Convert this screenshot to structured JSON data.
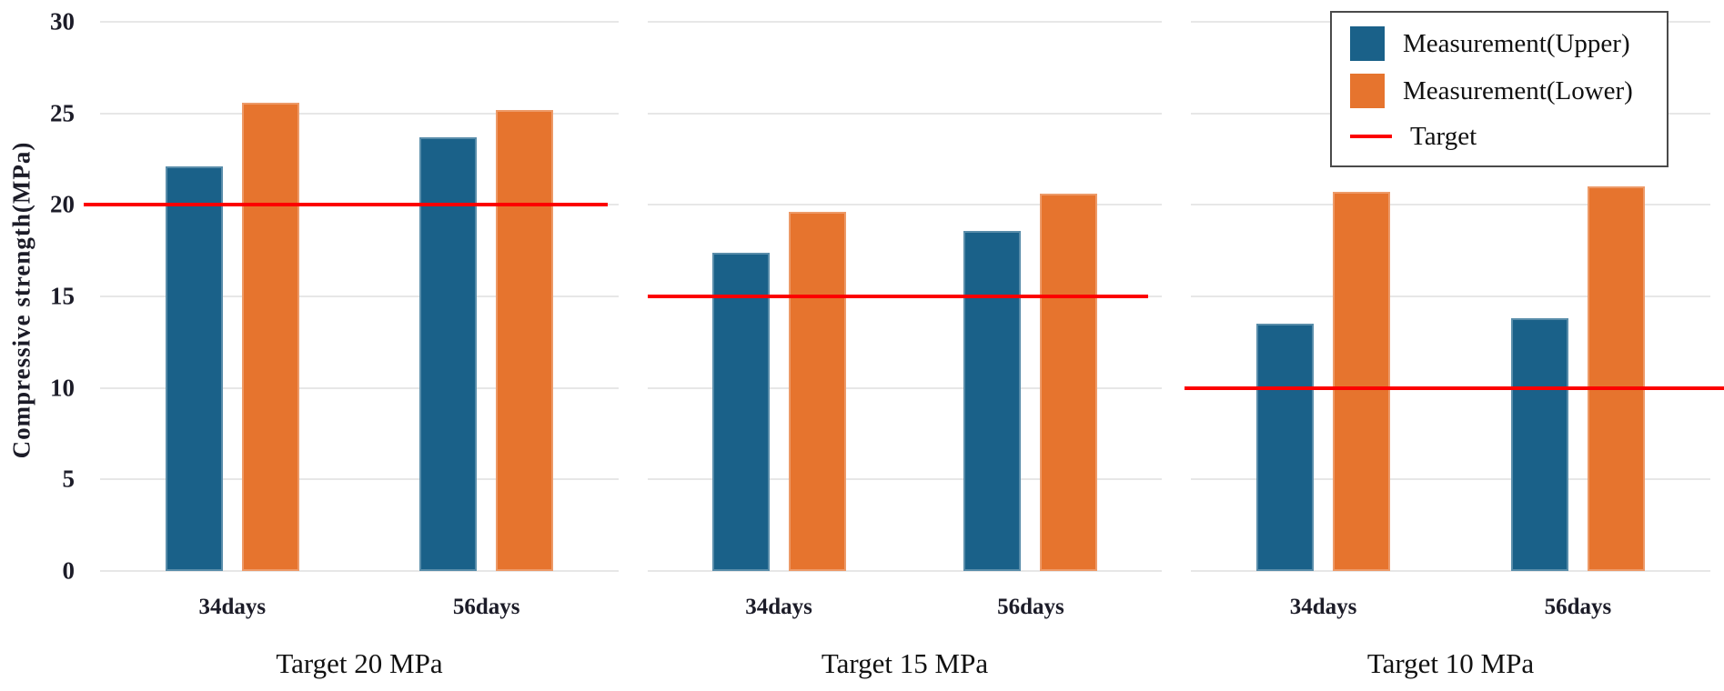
{
  "chart_data": {
    "type": "bar",
    "ylabel": "Compressive strength(MPa)",
    "ylim": [
      0,
      30
    ],
    "y_ticks": [
      "0",
      "5",
      "10",
      "15",
      "20",
      "25",
      "30"
    ],
    "grid": "horizontal",
    "categories": [
      "34days",
      "56days"
    ],
    "legend_position": "upper right",
    "legend_items": [
      {
        "label": "Measurement(Upper)",
        "swatch": "square",
        "color_key": "upper"
      },
      {
        "label": "Measurement(Lower)",
        "swatch": "square",
        "color_key": "lower"
      },
      {
        "label": "Target",
        "swatch": "line",
        "color_key": "target"
      }
    ],
    "colors": {
      "upper": "#1a6189",
      "lower": "#e6742e",
      "target": "#fc0000"
    },
    "panels": [
      {
        "title": "Target 20 MPa",
        "target": 20,
        "series": [
          {
            "name": "Measurement(Upper)",
            "values": [
              22.1,
              23.7
            ]
          },
          {
            "name": "Measurement(Lower)",
            "values": [
              25.6,
              25.2
            ]
          }
        ]
      },
      {
        "title": "Target 15 MPa",
        "target": 15,
        "series": [
          {
            "name": "Measurement(Upper)",
            "values": [
              17.4,
              18.6
            ]
          },
          {
            "name": "Measurement(Lower)",
            "values": [
              19.6,
              20.6
            ]
          }
        ]
      },
      {
        "title": "Target 10 MPa",
        "target": 10,
        "series": [
          {
            "name": "Measurement(Upper)",
            "values": [
              13.5,
              13.8
            ]
          },
          {
            "name": "Measurement(Lower)",
            "values": [
              20.7,
              21.0
            ]
          }
        ]
      }
    ]
  }
}
